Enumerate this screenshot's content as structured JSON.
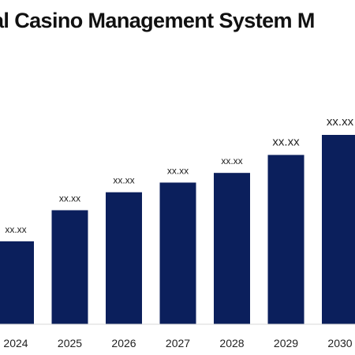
{
  "chart_data": {
    "type": "bar",
    "title": "al Casino Management System M",
    "categories": [
      "2024",
      "2025",
      "2026",
      "2027",
      "2028",
      "2029",
      "2030"
    ],
    "values": [
      12.0,
      16.5,
      19.1,
      20.5,
      21.9,
      24.5,
      27.4
    ],
    "data_labels": [
      "xx.xx",
      "xx.xx",
      "xx.xx",
      "xx.xx",
      "xx.xx",
      "xx.xx",
      "xx.xx"
    ],
    "xlabel": "",
    "ylabel": "",
    "ylim": [
      0,
      30
    ],
    "grid": false,
    "legend": "none",
    "bar_color": "#0b1f5c"
  }
}
